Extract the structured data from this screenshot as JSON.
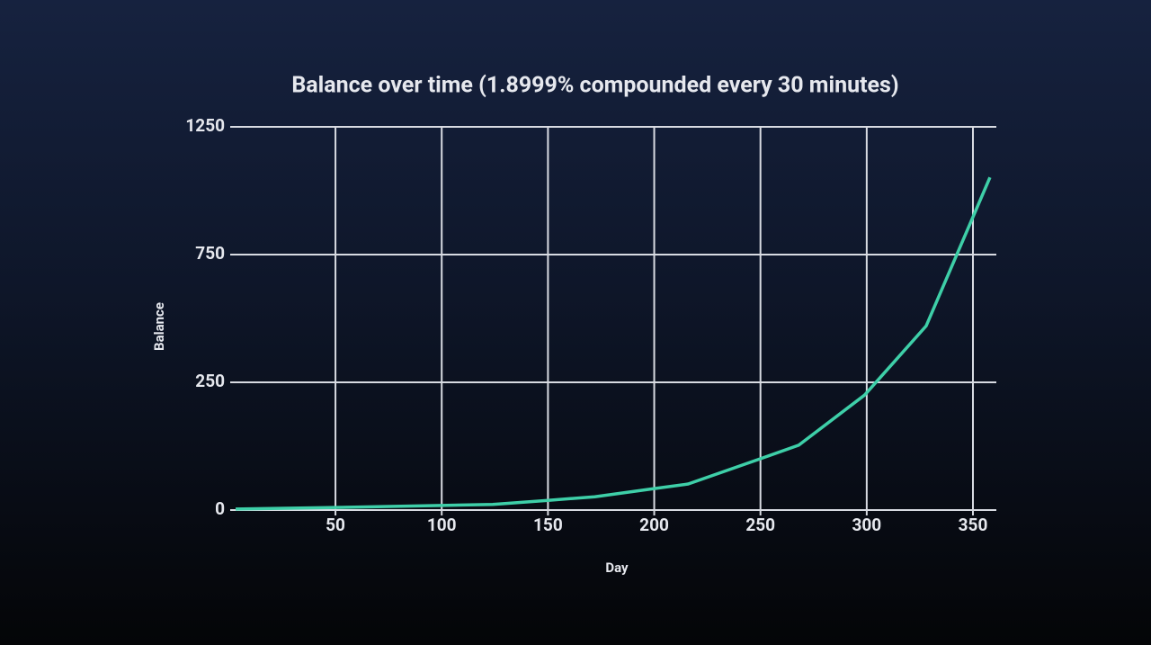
{
  "chart_data": {
    "type": "line",
    "title": "Balance over time (1.8999% compounded every 30 minutes)",
    "x_label": "Day",
    "y_label": "Balance",
    "x": [
      3,
      50,
      100,
      124,
      150,
      172,
      200,
      216,
      249,
      268,
      299,
      328,
      358
    ],
    "series": [
      {
        "name": "Balance",
        "color": "#3ecfa8",
        "values": [
          2,
          5,
          9,
          11,
          19,
          26,
          42,
          51,
          99,
          127,
          225,
          471,
          1052
        ]
      }
    ],
    "xlim": [
      3,
      361
    ],
    "xticks": [
      50,
      100,
      150,
      200,
      250,
      300,
      350
    ],
    "ylim": [
      0,
      1250
    ],
    "yticks": [
      0,
      250,
      750,
      1250
    ],
    "grid": true
  }
}
